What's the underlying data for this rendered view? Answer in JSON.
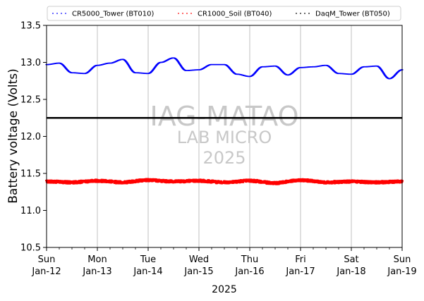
{
  "chart_data": {
    "type": "line",
    "xlabel": "2025",
    "ylabel": "Battery voltage (Volts)",
    "ylim": [
      10.5,
      13.5
    ],
    "yticks": [
      "10.5",
      "11.0",
      "11.5",
      "12.0",
      "12.5",
      "13.0",
      "13.5"
    ],
    "xlim": [
      "2025-01-12",
      "2025-01-19"
    ],
    "xticks": [
      {
        "day": "Sun",
        "date": "Jan-12"
      },
      {
        "day": "Mon",
        "date": "Jan-13"
      },
      {
        "day": "Tue",
        "date": "Jan-14"
      },
      {
        "day": "Wed",
        "date": "Jan-15"
      },
      {
        "day": "Thu",
        "date": "Jan-16"
      },
      {
        "day": "Fri",
        "date": "Jan-17"
      },
      {
        "day": "Sat",
        "date": "Jan-18"
      },
      {
        "day": "Sun",
        "date": "Jan-19"
      }
    ],
    "grid": "vertical at major ticks",
    "legend_position": "top, above plot",
    "watermark": [
      "IAG-MATAO",
      "LAB MICRO",
      "2025"
    ],
    "series": [
      {
        "name": "CR5000_Tower (BT010)",
        "color": "#0000ff",
        "style": "dotted",
        "x": [
          "2025-01-12 00:00",
          "2025-01-12 06:00",
          "2025-01-12 12:00",
          "2025-01-12 18:00",
          "2025-01-13 00:00",
          "2025-01-13 06:00",
          "2025-01-13 12:00",
          "2025-01-13 18:00",
          "2025-01-14 00:00",
          "2025-01-14 06:00",
          "2025-01-14 12:00",
          "2025-01-14 18:00",
          "2025-01-15 00:00",
          "2025-01-15 06:00",
          "2025-01-15 12:00",
          "2025-01-15 18:00",
          "2025-01-16 00:00",
          "2025-01-16 06:00",
          "2025-01-16 12:00",
          "2025-01-16 18:00",
          "2025-01-17 00:00",
          "2025-01-17 06:00",
          "2025-01-17 12:00",
          "2025-01-17 18:00",
          "2025-01-18 00:00",
          "2025-01-18 06:00",
          "2025-01-18 12:00",
          "2025-01-18 18:00",
          "2025-01-19 00:00"
        ],
        "y": [
          12.97,
          12.99,
          12.86,
          12.85,
          12.96,
          12.99,
          13.04,
          12.86,
          12.85,
          13.0,
          13.06,
          12.89,
          12.9,
          12.97,
          12.97,
          12.84,
          12.81,
          12.94,
          12.95,
          12.83,
          12.93,
          12.94,
          12.96,
          12.85,
          12.84,
          12.94,
          12.95,
          12.78,
          12.9
        ]
      },
      {
        "name": "CR1000_Soil (BT040)",
        "color": "#ff0000",
        "style": "dotted",
        "x": [
          "2025-01-12 00:00",
          "2025-01-12 12:00",
          "2025-01-13 00:00",
          "2025-01-13 12:00",
          "2025-01-14 00:00",
          "2025-01-14 12:00",
          "2025-01-15 00:00",
          "2025-01-15 12:00",
          "2025-01-16 00:00",
          "2025-01-16 12:00",
          "2025-01-17 00:00",
          "2025-01-17 12:00",
          "2025-01-18 00:00",
          "2025-01-18 12:00",
          "2025-01-19 00:00"
        ],
        "y": [
          11.39,
          11.38,
          11.4,
          11.38,
          11.41,
          11.39,
          11.4,
          11.38,
          11.4,
          11.37,
          11.41,
          11.38,
          11.39,
          11.38,
          11.39
        ]
      },
      {
        "name": "DaqM_Tower (BT050)",
        "color": "#000000",
        "style": "dotted",
        "x": [
          "2025-01-12 00:00",
          "2025-01-19 00:00"
        ],
        "y": [
          12.25,
          12.25
        ]
      }
    ]
  }
}
